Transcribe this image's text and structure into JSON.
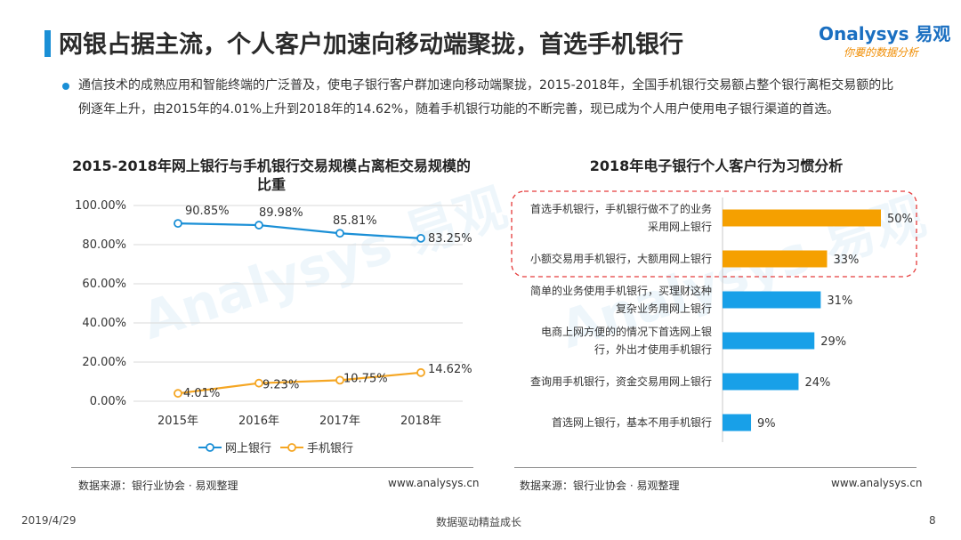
{
  "slide": {
    "title": "网银占据主流，个人客户加速向移动端聚拢，首选手机银行",
    "intro": "通信技术的成熟应用和智能终端的广泛普及，使电子银行客户群加速向移动端聚拢，2015-2018年，全国手机银行交易额占整个银行离柜交易额的比例逐年上升，由2015年的4.01%上升到2018年的14.62%，随着手机银行功能的不断完善，现已成为个人用户使用电子银行渠道的首选。",
    "date": "2019/4/29",
    "slogan": "数据驱动精益成长",
    "page": "8"
  },
  "logo": {
    "main": "Onalysys 易观",
    "sub": "你要的数据分析",
    "watermark": "Analysys 易观"
  },
  "left_footer": {
    "source": "数据来源：银行业协会 · 易观整理",
    "url": "www.analysys.cn"
  },
  "right_footer": {
    "source": "数据来源：银行业协会 · 易观整理",
    "url": "www.analysys.cn"
  },
  "chart_data": [
    {
      "type": "line",
      "title": "2015-2018年网上银行与手机银行交易规模占离柜交易规模的比重",
      "categories": [
        "2015年",
        "2016年",
        "2017年",
        "2018年"
      ],
      "ylim": [
        0,
        100
      ],
      "y_ticks": [
        "0.00%",
        "20.00%",
        "40.00%",
        "60.00%",
        "80.00%",
        "100.00%"
      ],
      "grid": true,
      "legend": "bottom",
      "series": [
        {
          "name": "网上银行",
          "values": [
            90.85,
            89.98,
            85.81,
            83.25
          ],
          "labels": [
            "90.85%",
            "89.98%",
            "85.81%",
            "83.25%"
          ],
          "color": "#1a8fd6"
        },
        {
          "name": "手机银行",
          "values": [
            4.01,
            9.23,
            10.75,
            14.62
          ],
          "labels": [
            "4.01%",
            "9.23%",
            "10.75%",
            "14.62%"
          ],
          "color": "#f5a623"
        }
      ]
    },
    {
      "type": "bar",
      "orientation": "horizontal",
      "title": "2018年电子银行个人客户行为习惯分析",
      "xlim": [
        0,
        50
      ],
      "categories": [
        [
          "首选手机银行，手机银行做不了的业务",
          "采用网上银行"
        ],
        [
          "小额交易用手机银行，大额用网上银行"
        ],
        [
          "简单的业务使用手机银行，买理财这种",
          "复杂业务用网上银行"
        ],
        [
          "电商上网方便的的情况下首选网上银",
          "行，外出才使用手机银行"
        ],
        [
          "查询用手机银行，资金交易用网上银行"
        ],
        [
          "首选网上银行，基本不用手机银行"
        ]
      ],
      "values": [
        50,
        33,
        31,
        29,
        24,
        9
      ],
      "labels": [
        "50%",
        "33%",
        "31%",
        "29%",
        "24%",
        "9%"
      ],
      "colors": [
        "#f5a000",
        "#f5a000",
        "#18a0e8",
        "#18a0e8",
        "#18a0e8",
        "#18a0e8"
      ],
      "highlight_count": 2
    }
  ]
}
